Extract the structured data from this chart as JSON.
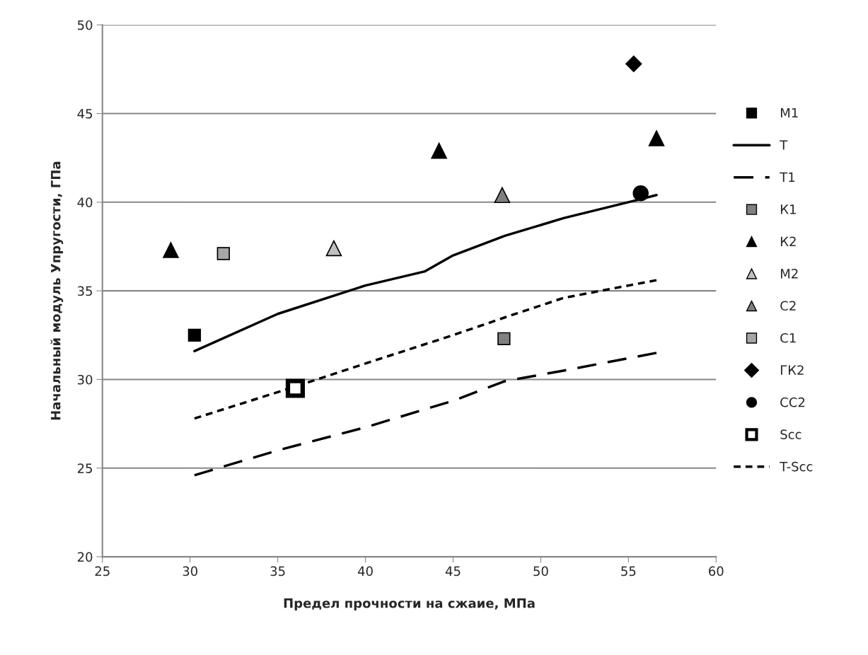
{
  "chart_data": {
    "type": "scatter",
    "xlabel": "Предел прочности на сжаие, МПа",
    "ylabel": "Начальный модуль Упругости, ГПа",
    "xlim": [
      25,
      60
    ],
    "xticks": [
      25,
      30,
      35,
      40,
      45,
      50,
      55,
      60
    ],
    "ylim": [
      20,
      50
    ],
    "yticks": [
      20,
      25,
      30,
      35,
      40,
      45,
      50
    ],
    "grid": "y",
    "legend": "right",
    "series": [
      {
        "name": "М1",
        "marker": "square",
        "color": "#000000",
        "x": [
          30.25
        ],
        "values": [
          32.5
        ]
      },
      {
        "name": "Т",
        "type": "line",
        "marker": "none",
        "line_style": "solid",
        "color": "#000000",
        "x": [
          30.25,
          35,
          40,
          43.4,
          45,
          47.95,
          51.3,
          55.4,
          56.6
        ],
        "values": [
          31.6,
          33.7,
          35.3,
          36.1,
          37.0,
          38.1,
          39.1,
          40.1,
          40.4
        ]
      },
      {
        "name": "Т1",
        "type": "line",
        "marker": "none",
        "line_style": "dashed",
        "color": "#000000",
        "x": [
          30.25,
          35,
          40,
          45,
          47.95,
          51.3,
          56.6
        ],
        "values": [
          24.6,
          26.0,
          27.3,
          28.8,
          29.9,
          30.5,
          31.5
        ]
      },
      {
        "name": "К1",
        "marker": "square",
        "color": "#808080",
        "x": [
          47.9
        ],
        "values": [
          32.3
        ]
      },
      {
        "name": "К2",
        "marker": "triangle",
        "color": "#000000",
        "x": [
          28.9,
          44.2,
          56.6
        ],
        "values": [
          37.3,
          42.9,
          43.6
        ]
      },
      {
        "name": "М2",
        "marker": "triangle",
        "color": "#c0c0c0",
        "x": [
          38.2
        ],
        "values": [
          37.4
        ]
      },
      {
        "name": "С2",
        "marker": "triangle",
        "color": "#808080",
        "x": [
          47.8
        ],
        "values": [
          40.4
        ]
      },
      {
        "name": "С1",
        "marker": "square",
        "color": "#a6a6a6",
        "x": [
          31.9
        ],
        "values": [
          37.1
        ]
      },
      {
        "name": "ГК2",
        "marker": "diamond",
        "color": "#000000",
        "x": [
          55.3
        ],
        "values": [
          47.8
        ]
      },
      {
        "name": "СС2",
        "marker": "circle",
        "color": "#000000",
        "x": [
          55.7
        ],
        "values": [
          40.5
        ]
      },
      {
        "name": "Scc",
        "marker": "square",
        "color": "#ffffff",
        "x": [
          36.0
        ],
        "values": [
          29.5
        ]
      },
      {
        "name": "T-Scc",
        "type": "line",
        "marker": "none",
        "line_style": "dotted",
        "color": "#000000",
        "x": [
          30.25,
          36.0,
          40,
          45,
          47.95,
          51.3,
          56.6
        ],
        "values": [
          27.8,
          29.6,
          30.9,
          32.5,
          33.5,
          34.6,
          35.6
        ]
      }
    ]
  }
}
